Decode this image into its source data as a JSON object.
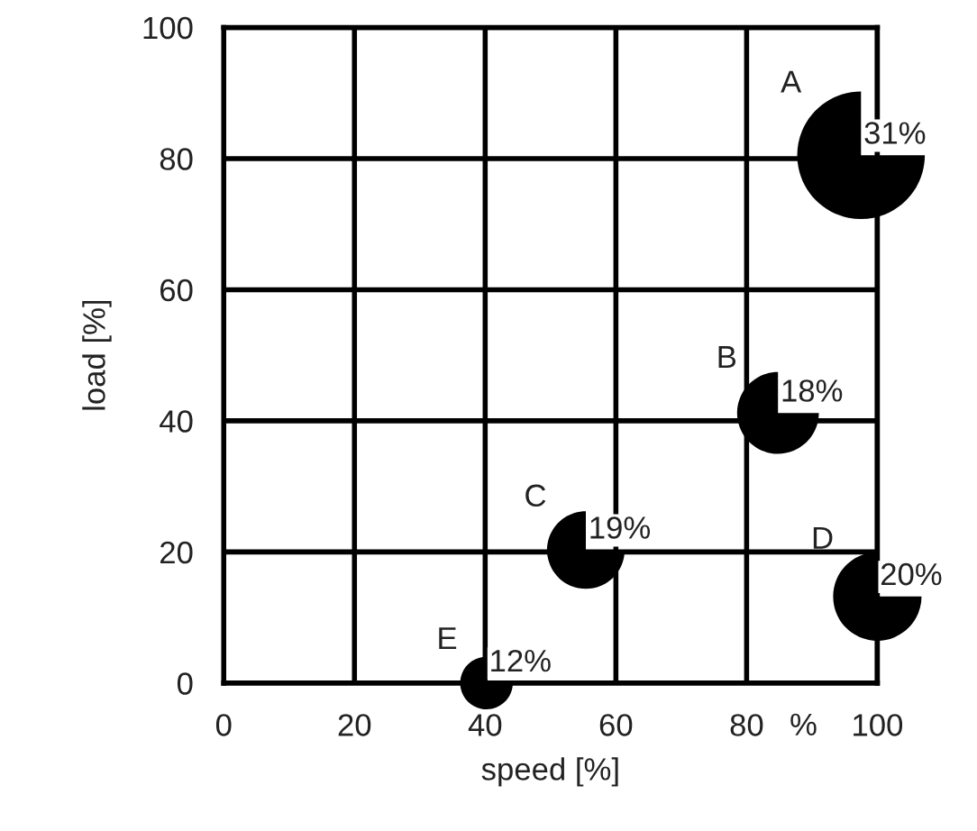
{
  "chart_data": {
    "type": "bubble",
    "xlabel": "speed [%]",
    "ylabel": "load [%]",
    "xlim": [
      0,
      100
    ],
    "ylim": [
      0,
      100
    ],
    "xticks": [
      0,
      20,
      40,
      60,
      80,
      100
    ],
    "yticks": [
      0,
      20,
      40,
      60,
      80,
      100
    ],
    "grid": true,
    "legend": false,
    "annotations": [
      "%",
      {
        "text": "31%",
        "x": 97.5,
        "y": 80.5
      },
      {
        "text": "18%",
        "x": 84.8,
        "y": 41.2
      },
      {
        "text": "19%",
        "x": 55.4,
        "y": 20.3
      },
      {
        "text": "20%",
        "x": 100,
        "y": 13.2
      },
      {
        "text": "12%",
        "x": 40.2,
        "y": 0
      }
    ],
    "series": [
      {
        "name": "A",
        "color": "#000000",
        "x": [
          97.5
        ],
        "values": [
          80.5
        ],
        "sizes": [
          1
        ]
      },
      {
        "name": "B",
        "color": "#000000",
        "x": [
          84.8
        ],
        "values": [
          41.2
        ],
        "sizes": [
          0.41
        ]
      },
      {
        "name": "C",
        "color": "#000000",
        "x": [
          55.4
        ],
        "values": [
          20.3
        ],
        "sizes": [
          0.37
        ]
      },
      {
        "name": "D",
        "color": "#000000",
        "x": [
          100
        ],
        "values": [
          13.2
        ],
        "sizes": [
          0.48
        ]
      },
      {
        "name": "E",
        "color": "#000000",
        "x": [
          40.2
        ],
        "values": [
          0
        ],
        "sizes": [
          0.17
        ]
      }
    ]
  }
}
